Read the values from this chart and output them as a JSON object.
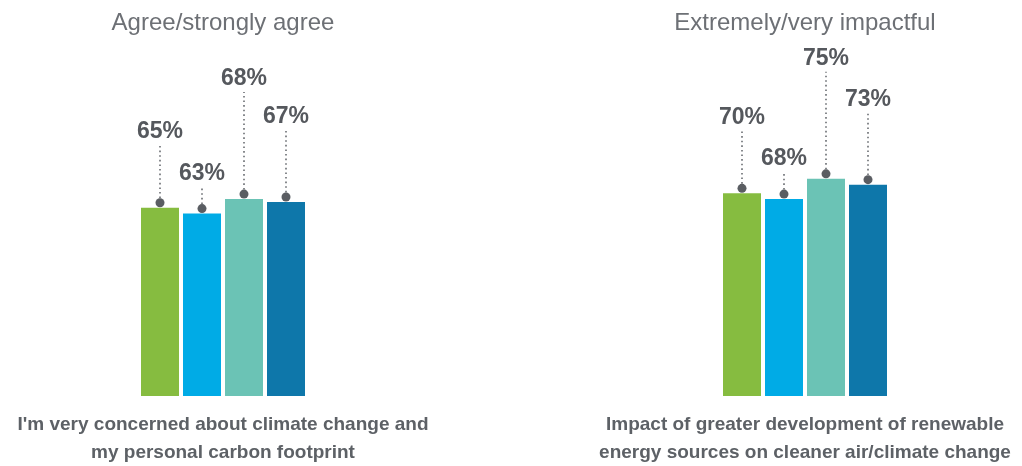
{
  "chart_data": [
    {
      "type": "bar",
      "title": "Agree/strongly agree",
      "xlabel": "I'm very concerned about climate change and my personal carbon footprint",
      "categories": [
        null,
        null,
        null,
        null
      ],
      "values": [
        65,
        63,
        68,
        67
      ],
      "colors": [
        "#86bc40",
        "#00abe6",
        "#6bc3b5",
        "#0e77aa"
      ],
      "value_labels": [
        "65%",
        "63%",
        "68%",
        "67%"
      ]
    },
    {
      "type": "bar",
      "title": "Extremely/very impactful",
      "xlabel": "Impact of greater development of renewable energy sources on cleaner air/climate change",
      "categories": [
        null,
        null,
        null,
        null
      ],
      "values": [
        70,
        68,
        75,
        73
      ],
      "colors": [
        "#86bc40",
        "#00abe6",
        "#6bc3b5",
        "#0e77aa"
      ],
      "value_labels": [
        "70%",
        "68%",
        "75%",
        "73%"
      ]
    }
  ]
}
